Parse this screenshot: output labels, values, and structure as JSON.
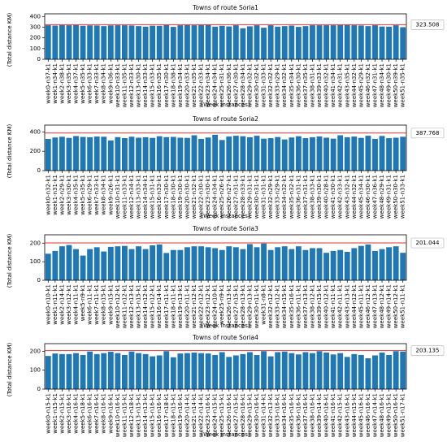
{
  "chart_data": [
    {
      "type": "bar",
      "title": "Towns of route Soria1",
      "xlabel": "(Week instances)",
      "ylabel": "(Total distance KM)",
      "color": "#1f77b4",
      "reference_line": 323.508,
      "reference_color": "#e8302a",
      "ylim": [
        0,
        425
      ],
      "yticks": [
        0,
        100,
        200,
        300,
        400
      ],
      "categories": [
        "week0-n37-k1",
        "week1-n34-k1",
        "week2-n38-k1",
        "week3-n35-k1",
        "week4-n37-k1",
        "week5-n35-k1",
        "week6-n33-k1",
        "week7-n33-k1",
        "week8-n34-k1",
        "week9-n36-k1",
        "week10-n33-k1",
        "week11-n35-k1",
        "week12-n33-k1",
        "week13-n30-k1",
        "week14-n33-k1",
        "week15-n33-k1",
        "week16-n35-k1",
        "week17-n30-k1",
        "week18-n38-k1",
        "week19-n34-k1",
        "week20-n33-k1",
        "week21-n35-k1",
        "week22-n33-k1",
        "week23-n34-k1",
        "week24-n34-k1",
        "week25-n31-k1",
        "week26-n36-k1",
        "week27-n30-k1",
        "week28-n34-k1",
        "week29-n32-k1",
        "week30-n32-k1",
        "week31-n33-k1",
        "week32-n32-k1",
        "week33-n29-k1",
        "week34-n32-k1",
        "week35-n34-k1",
        "week36-n30-k1",
        "week37-n35-k1",
        "week38-n31-k1",
        "week39-n33-k1",
        "week40-n32-k1",
        "week41-n34-k1",
        "week42-n31-k1",
        "week43-n35-k1",
        "week44-n32-k1",
        "week45-n29-k1",
        "week46-n32-k1",
        "week47-n31-k1",
        "week48-n34-k1",
        "week49-n30-k1",
        "week50-n39-k1",
        "week51-n35-k1"
      ],
      "values": [
        318,
        315,
        320,
        318,
        320,
        313,
        317,
        316,
        310,
        317,
        318,
        318,
        316,
        310,
        305,
        314,
        313,
        320,
        303,
        318,
        320,
        318,
        320,
        322,
        305,
        313,
        307,
        318,
        290,
        308,
        318,
        295,
        318,
        305,
        310,
        315,
        303,
        310,
        318,
        318,
        318,
        318,
        320,
        320,
        318,
        316,
        310,
        318,
        306,
        305,
        318,
        300
      ]
    },
    {
      "type": "bar",
      "title": "Towns of route Soria2",
      "xlabel": "(Week instances)",
      "ylabel": "(Total distance KM)",
      "color": "#1f77b4",
      "reference_line": 387.768,
      "reference_color": "#e8302a",
      "ylim": [
        0,
        470
      ],
      "yticks": [
        0,
        200,
        400
      ],
      "categories": [
        "week0-n32-k1",
        "week1-n31-k1",
        "week2-n29-k1",
        "week3-n30-k1",
        "week4-n35-k1",
        "week5-n35-k1",
        "week6-n29-k1",
        "week7-n33-k1",
        "week8-n34-k1",
        "week9-n26-k1",
        "week10-n31-k1",
        "week11-n33-k1",
        "week12-n34-k1",
        "week13-n33-k1",
        "week14-n34-k1",
        "week15-n31-k1",
        "week16-n33-k1",
        "week17-n30-k1",
        "week18-n30-k1",
        "week19-n30-k1",
        "week20-n30-k1",
        "week21-n32-k1",
        "week22-n30-k1",
        "week23-n30-k1",
        "week24-n34-k1",
        "week25-n26-k1",
        "week26-n27-k1",
        "week27-n31-k1",
        "week28-n33-k1",
        "week29-n31-k1",
        "week30-n31-k1",
        "week31-n31-k1",
        "week32-n29-k1",
        "week33-n29-k1",
        "week34-n32-k1",
        "week35-n32-k1",
        "week36-n31-k1",
        "week37-n31-k1",
        "week38-n33-k1",
        "week39-n30-k1",
        "week40-n28-k1",
        "week41-n30-k1",
        "week42-n33-k1",
        "week43-n32-k1",
        "week44-n32-k1",
        "week45-n34-k1",
        "week46-n30-k1",
        "week47-n36-k1",
        "week48-n29-k1",
        "week49-n31-k1",
        "week50-n30-k1",
        "week51-n33-k1"
      ],
      "values": [
        327,
        342,
        350,
        338,
        357,
        348,
        345,
        352,
        350,
        312,
        346,
        336,
        350,
        340,
        345,
        338,
        355,
        346,
        348,
        340,
        338,
        365,
        328,
        342,
        370,
        316,
        352,
        360,
        355,
        345,
        360,
        330,
        335,
        347,
        322,
        342,
        355,
        335,
        345,
        353,
        340,
        330,
        365,
        345,
        352,
        338,
        360,
        328,
        358,
        335,
        340,
        350
      ]
    },
    {
      "type": "bar",
      "title": "Towns of route Soria3",
      "xlabel": "(Week instances)",
      "ylabel": "(Total distance KM)",
      "color": "#1f77b4",
      "reference_line": 201.044,
      "reference_color": "#e8302a",
      "ylim": [
        0,
        245
      ],
      "yticks": [
        0,
        100,
        200
      ],
      "categories": [
        "week0-n10-k1",
        "week1-n11-k1",
        "week2-n14-k1",
        "week3-n12-k1",
        "week4-n11-k1",
        "week5-n9-k1",
        "week6-n11-k1",
        "week7-n11-k1",
        "week8-n15-k1",
        "week9-n15-k1",
        "week10-n12-k1",
        "week11-n12-k1",
        "week12-n13-k1",
        "week13-n15-k1",
        "week14-n12-k1",
        "week15-n12-k1",
        "week16-n14-k1",
        "week17-n11-k1",
        "week18-n11-k1",
        "week19-n13-k1",
        "week20-n11-k1",
        "week21-n12-k1",
        "week22-n12-k1",
        "week23-n12-k1",
        "week24-n10-k1",
        "week25-n9-k1",
        "week26-n13-k1",
        "week27-n15-k1",
        "week28-n13-k1",
        "week29-n13-k1",
        "week30-n11-k1",
        "week31-n8-k1",
        "week32-n12-k1",
        "week33-n12-k1",
        "week34-n15-k1",
        "week35-n16-k1",
        "week36-n11-k1",
        "week37-n13-k1",
        "week38-n12-k1",
        "week39-n15-k1",
        "week40-n12-k1",
        "week41-n11-k1",
        "week42-n11-k1",
        "week43-n13-k1",
        "week44-n12-k1",
        "week45-n11-k1",
        "week46-n12-k1",
        "week47-n13-k1",
        "week48-n12-k1",
        "week49-n14-k1",
        "week50-n12-k1",
        "week51-n11-k1"
      ],
      "values": [
        143,
        158,
        183,
        190,
        168,
        133,
        168,
        178,
        155,
        180,
        183,
        185,
        168,
        183,
        168,
        188,
        193,
        147,
        163,
        163,
        178,
        183,
        183,
        178,
        173,
        163,
        183,
        178,
        168,
        195,
        178,
        198,
        163,
        178,
        183,
        168,
        183,
        163,
        173,
        173,
        148,
        158,
        163,
        153,
        173,
        185,
        193,
        158,
        168,
        178,
        183,
        148
      ]
    },
    {
      "type": "bar",
      "title": "Towns of route Soria4",
      "xlabel": "(Week instances)",
      "ylabel": "(Total distance KM)",
      "color": "#1f77b4",
      "reference_line": 203.135,
      "reference_color": "#e8302a",
      "ylim": [
        0,
        240
      ],
      "yticks": [
        0,
        100,
        200
      ],
      "categories": [
        "week0-n15-k1",
        "week1-n15-k1",
        "week2-n15-k1",
        "week3-n16-k1",
        "week4-n16-k1",
        "week5-n18-k1",
        "week6-n16-k1",
        "week7-n16-k1",
        "week8-n16-k1",
        "week9-n16-k1",
        "week10-n16-k1",
        "week11-n15-k1",
        "week12-n18-k1",
        "week13-n15-k1",
        "week14-n13-k1",
        "week15-n16-k1",
        "week16-n16-k1",
        "week17-n18-k1",
        "week18-n15-k1",
        "week19-n16-k1",
        "week20-n14-k1",
        "week21-n14-k1",
        "week22-n14-k1",
        "week23-n16-k1",
        "week24-n15-k1",
        "week25-n15-k1",
        "week26-n16-k1",
        "week27-n15-k1",
        "week28-n16-k1",
        "week29-n15-k1",
        "week30-n16-k1",
        "week31-n14-k1",
        "week32-n13-k1",
        "week33-n16-k1",
        "week34-n16-k1",
        "week35-n16-k1",
        "week36-n16-k1",
        "week37-n16-k1",
        "week38-n16-k1",
        "week39-n14-k1",
        "week40-n16-k1",
        "week41-n16-k1",
        "week42-n15-k1",
        "week43-n16-k1",
        "week44-n15-k1",
        "week45-n16-k1",
        "week46-n16-k1",
        "week47-n14-k1",
        "week48-n16-k1",
        "week49-n15-k1",
        "week50-n16-k1",
        "week51-n17-k1"
      ],
      "values": [
        175,
        188,
        185,
        185,
        190,
        180,
        198,
        185,
        190,
        197,
        190,
        180,
        198,
        190,
        185,
        173,
        178,
        200,
        168,
        188,
        190,
        193,
        190,
        188,
        180,
        195,
        170,
        178,
        185,
        195,
        180,
        200,
        173,
        195,
        198,
        190,
        183,
        195,
        190,
        200,
        193,
        183,
        190,
        170,
        185,
        180,
        163,
        178,
        193,
        180,
        200,
        198
      ]
    }
  ]
}
